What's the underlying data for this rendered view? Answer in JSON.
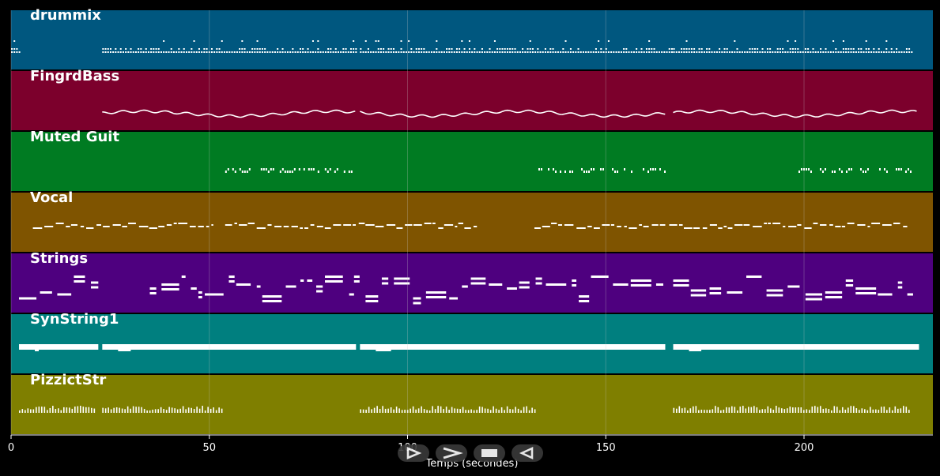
{
  "chart_data": {
    "type": "piano-roll",
    "xlabel": "Temps (secondes)",
    "xlim": [
      0,
      232.5
    ],
    "xticks": [
      0,
      50,
      100,
      150,
      200
    ],
    "xtick_labels": [
      "0",
      "50",
      "100",
      "150",
      "200"
    ],
    "grid": true,
    "tracks": [
      {
        "name": "drummix",
        "color": "#00577f",
        "style": "drums",
        "segments": [
          [
            0,
            2
          ],
          [
            23,
            87
          ],
          [
            88,
            167
          ],
          [
            167,
            227.5
          ]
        ]
      },
      {
        "name": "FingrdBass",
        "color": "#7c002c",
        "style": "wave",
        "segments": [
          [
            23,
            87
          ],
          [
            88,
            165
          ],
          [
            167,
            228.5
          ]
        ]
      },
      {
        "name": "Muted Guit",
        "color": "#007b22",
        "style": "sparse",
        "segments": [
          [
            54,
            86.5
          ],
          [
            133,
            165
          ],
          [
            198,
            227
          ]
        ]
      },
      {
        "name": "Vocal",
        "color": "#7f5400",
        "style": "melody",
        "segments": [
          [
            5.5,
            51
          ],
          [
            54,
            117.5
          ],
          [
            132,
            165
          ],
          [
            166,
            226.5
          ]
        ]
      },
      {
        "name": "Strings",
        "color": "#4e007f",
        "style": "chords",
        "segments": [
          [
            2,
            22
          ],
          [
            35,
            86.5
          ],
          [
            86.5,
            164.5
          ],
          [
            167,
            227.5
          ]
        ]
      },
      {
        "name": "SynString1",
        "color": "#007f7f",
        "style": "pads",
        "segments": [
          [
            2,
            22
          ],
          [
            23,
            87
          ],
          [
            88,
            165
          ],
          [
            167,
            229
          ]
        ]
      },
      {
        "name": "PizzictStr",
        "color": "#7f7f00",
        "style": "pizz",
        "segments": [
          [
            2,
            21.5
          ],
          [
            23,
            53.5
          ],
          [
            88,
            132.5
          ],
          [
            167,
            227
          ]
        ]
      }
    ]
  },
  "controls": [
    {
      "name": "play-button",
      "icon": "play-icon"
    },
    {
      "name": "fast-forward-button",
      "icon": "fast-forward-icon"
    },
    {
      "name": "stop-button",
      "icon": "stop-icon"
    },
    {
      "name": "rewind-button",
      "icon": "rewind-icon"
    }
  ]
}
